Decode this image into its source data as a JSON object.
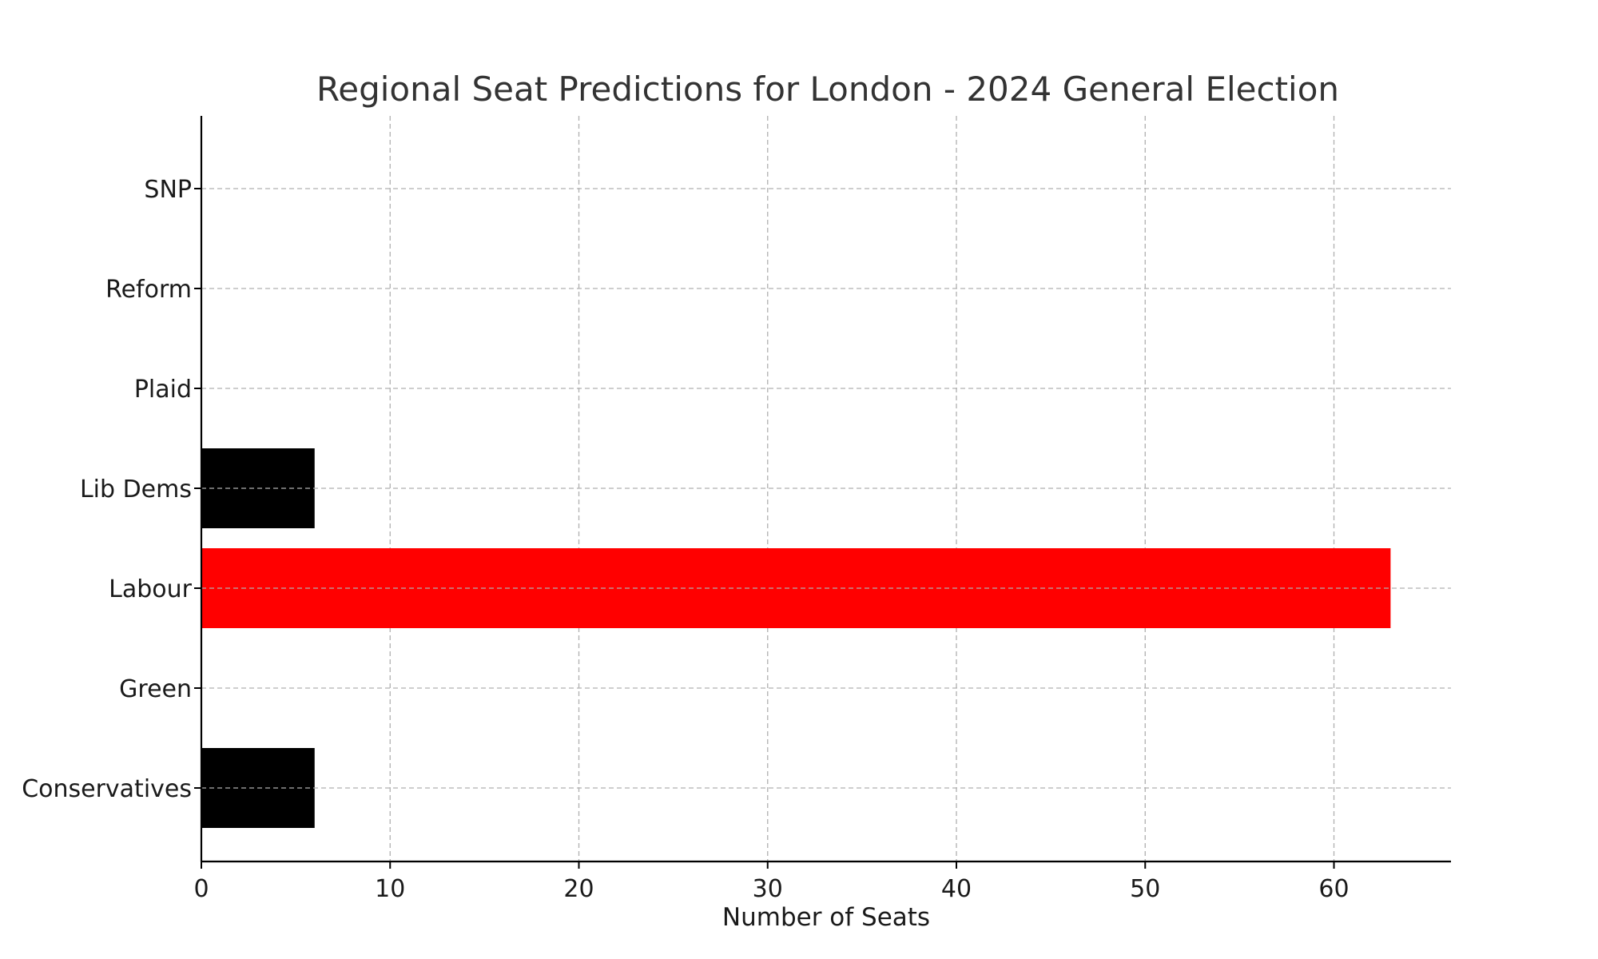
{
  "chart_data": {
    "type": "bar",
    "orientation": "horizontal",
    "title": "Regional Seat Predictions for London - 2024 General Election",
    "xlabel": "Number of Seats",
    "ylabel": "",
    "categories": [
      "Conservatives",
      "Green",
      "Labour",
      "Lib Dems",
      "Plaid",
      "Reform",
      "SNP"
    ],
    "values": [
      6,
      0,
      63,
      6,
      0,
      0,
      0
    ],
    "colors": [
      "#000000",
      "#000000",
      "#ff0000",
      "#000000",
      "#000000",
      "#000000",
      "#000000"
    ],
    "xlim": [
      0,
      66.2
    ],
    "xticks": [
      0,
      10,
      20,
      30,
      40,
      50,
      60
    ],
    "xtick_labels": [
      "0",
      "10",
      "20",
      "30",
      "40",
      "50",
      "60"
    ],
    "grid": true
  }
}
